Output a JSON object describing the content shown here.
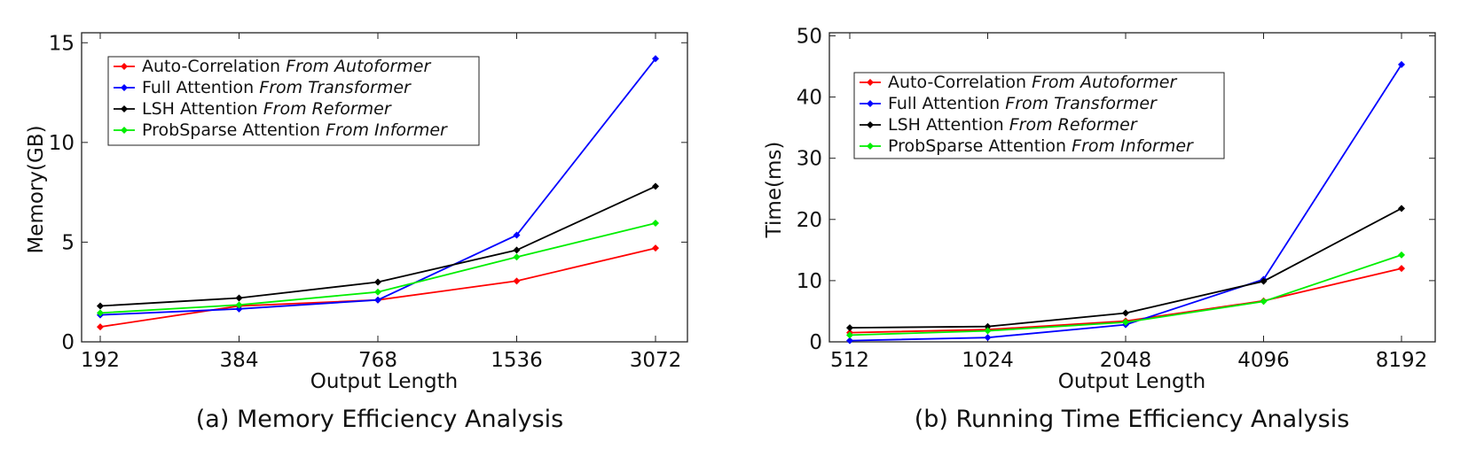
{
  "chart_data": [
    {
      "type": "line",
      "caption": "(a) Memory Efficiency Analysis",
      "xlabel": "Output Length",
      "ylabel": "Memory(GB)",
      "categories": [
        "192",
        "384",
        "768",
        "1536",
        "3072"
      ],
      "ylim": [
        0,
        15.5
      ],
      "yticks": [
        0,
        5,
        10,
        15
      ],
      "legend_position": "top-left",
      "series": [
        {
          "name": "Auto-Correlation",
          "source": "From Autoformer",
          "color": "#ff0000",
          "values": [
            0.75,
            1.8,
            2.1,
            3.05,
            4.7
          ]
        },
        {
          "name": "Full Attention",
          "source": "From Transformer",
          "color": "#0000ff",
          "values": [
            1.35,
            1.65,
            2.1,
            5.35,
            14.2
          ]
        },
        {
          "name": "LSH Attention",
          "source": "From Reformer",
          "color": "#000000",
          "values": [
            1.8,
            2.2,
            3.0,
            4.6,
            7.8
          ]
        },
        {
          "name": "ProbSparse Attention",
          "source": "From Informer",
          "color": "#00ee00",
          "values": [
            1.45,
            1.85,
            2.5,
            4.25,
            5.95
          ]
        }
      ]
    },
    {
      "type": "line",
      "caption": "(b) Running Time Efficiency Analysis",
      "xlabel": "Output Length",
      "ylabel": "Time(ms)",
      "categories": [
        "512",
        "1024",
        "2048",
        "4096",
        "8192"
      ],
      "ylim": [
        0,
        50.5
      ],
      "yticks": [
        0,
        10,
        20,
        30,
        40,
        50
      ],
      "legend_position": "top-left",
      "series": [
        {
          "name": "Auto-Correlation",
          "source": "From Autoformer",
          "color": "#ff0000",
          "values": [
            1.5,
            2.0,
            3.4,
            6.7,
            12.0
          ]
        },
        {
          "name": "Full Attention",
          "source": "From Transformer",
          "color": "#0000ff",
          "values": [
            0.2,
            0.7,
            2.8,
            10.2,
            45.3
          ]
        },
        {
          "name": "LSH Attention",
          "source": "From Reformer",
          "color": "#000000",
          "values": [
            2.3,
            2.5,
            4.7,
            9.9,
            21.8
          ]
        },
        {
          "name": "ProbSparse Attention",
          "source": "From Informer",
          "color": "#00ee00",
          "values": [
            1.1,
            1.8,
            3.2,
            6.6,
            14.2
          ]
        }
      ]
    }
  ]
}
